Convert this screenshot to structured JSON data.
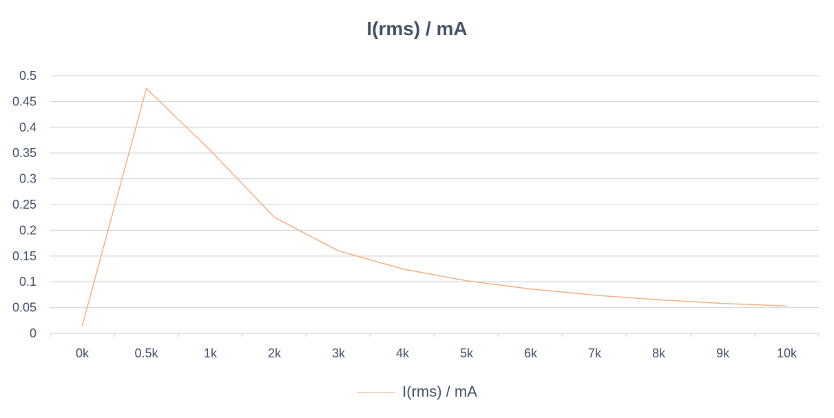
{
  "chart_data": {
    "type": "line",
    "title": "I(rms) / mA",
    "xlabel": "",
    "ylabel": "",
    "categories": [
      "0k",
      "0.5k",
      "1k",
      "2k",
      "3k",
      "4k",
      "5k",
      "6k",
      "7k",
      "8k",
      "9k",
      "10k"
    ],
    "series": [
      {
        "name": "I(rms) / mA",
        "color": "#f4b183",
        "values": [
          0.015,
          0.475,
          0.355,
          0.225,
          0.16,
          0.125,
          0.102,
          0.086,
          0.074,
          0.065,
          0.058,
          0.053
        ]
      }
    ],
    "ylim": [
      0,
      0.5
    ],
    "yticks": [
      "0",
      "0.05",
      "0.1",
      "0.15",
      "0.2",
      "0.25",
      "0.3",
      "0.35",
      "0.4",
      "0.45",
      "0.5"
    ],
    "grid": true,
    "legend_position": "bottom",
    "gridline_color": "#d9d9d9",
    "text_color": "#44546a"
  }
}
